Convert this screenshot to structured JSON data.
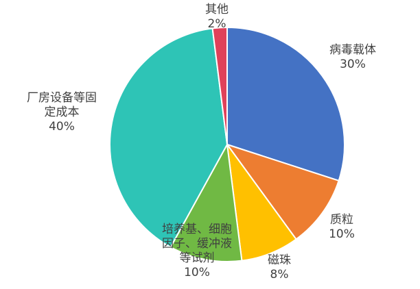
{
  "chart_data": {
    "type": "pie",
    "title": "",
    "start": "12 o'clock",
    "direction": "clockwise",
    "legend": "none",
    "slices": [
      {
        "label_lines": [
          "病毒载体"
        ],
        "percent_label": "30%",
        "value": 30,
        "color": "#4472C4"
      },
      {
        "label_lines": [
          "质粒"
        ],
        "percent_label": "10%",
        "value": 10,
        "color": "#ED7D31"
      },
      {
        "label_lines": [
          "磁珠"
        ],
        "percent_label": "8%",
        "value": 8,
        "color": "#FFC000"
      },
      {
        "label_lines": [
          "培养基、细胞",
          "因子、缓冲液",
          "等试剂"
        ],
        "percent_label": "10%",
        "value": 10,
        "color": "#70B944"
      },
      {
        "label_lines": [
          "厂房设备等固",
          "定成本"
        ],
        "percent_label": "40%",
        "value": 40,
        "color": "#2EC4B6"
      },
      {
        "label_lines": [
          "其他"
        ],
        "percent_label": "2%",
        "value": 2,
        "color": "#E0415A"
      }
    ]
  }
}
